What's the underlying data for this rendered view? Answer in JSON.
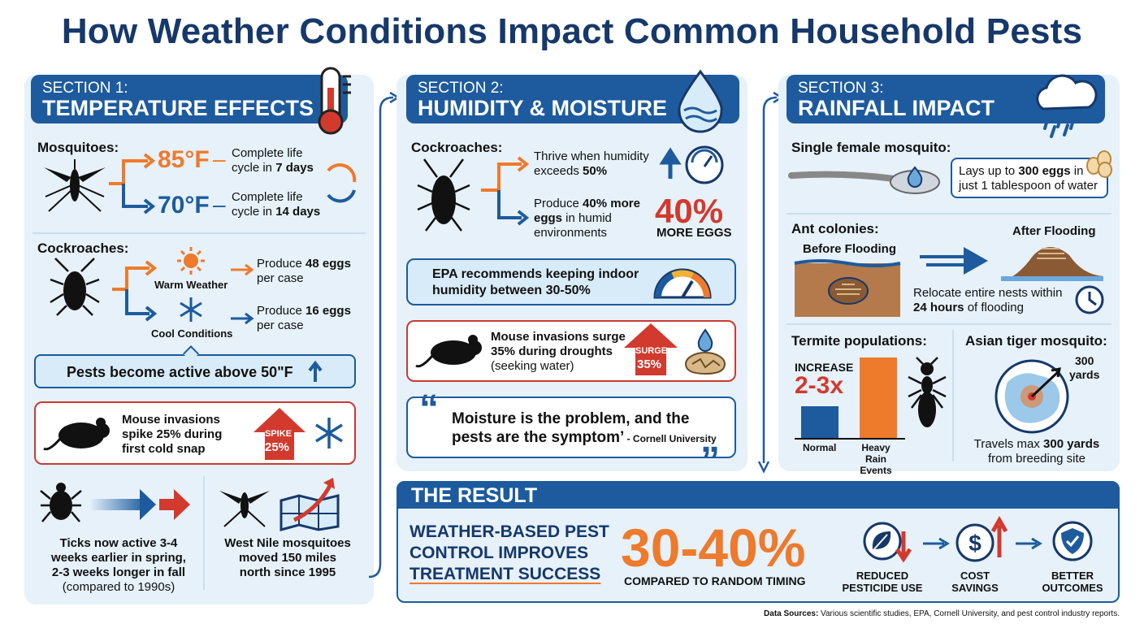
{
  "title": "How Weather Conditions Impact Common Household Pests",
  "colors": {
    "navy": "#16386b",
    "blue": "#1d5b9e",
    "orange": "#ee7a2b",
    "red": "#d23a2e",
    "panel": "#e6f1fa"
  },
  "s1": {
    "label": "SECTION 1:",
    "title": "TEMPERATURE EFFECTS",
    "mosq_h": "Mosquitoes:",
    "t85": "85°F",
    "c85a": "Complete life",
    "c85b": "cycle in ",
    "c85c": "7 days",
    "t70": "70°F",
    "c70a": "Complete life",
    "c70b": "cycle in ",
    "c70c": "14 days",
    "roach_h": "Cockroaches:",
    "warm": "Warm Weather",
    "cool": "Cool Conditions",
    "e48a": "Produce ",
    "e48b": "48 eggs",
    "e48c": "per case",
    "e16a": "Produce ",
    "e16b": "16 eggs",
    "e16c": "per case",
    "active": "Pests become active above 50\"F",
    "mouse1": "Mouse invasions",
    "mouse2": "spike 25% during",
    "mouse3": "first cold snap",
    "spike": "SPIKE",
    "spike_pct": "25%",
    "tick1": "Ticks now active 3-4",
    "tick2": "weeks earlier in spring,",
    "tick3": "2-3 weeks longer in fall",
    "tick4": "(compared to 1990s)",
    "wn1": "West Nile mosquitoes",
    "wn2": "moved 150 miles",
    "wn3": "north since 1995"
  },
  "s2": {
    "label": "SECTION 2:",
    "title": "HUMIDITY & MOISTURE",
    "roach_h": "Cockroaches:",
    "thrive1": "Thrive when humidity",
    "thrive2": "exceeds ",
    "thrive3": "50%",
    "prod1": "Produce ",
    "prod2": "40% more",
    "prod3": "eggs",
    "prod4": " in humid",
    "prod5": "environments",
    "pct": "40%",
    "more": "MORE EGGS",
    "epa1": "EPA recommends keeping indoor",
    "epa2": "humidity between 30-50%",
    "mouse1": "Mouse invasions surge",
    "mouse2": "35% during droughts",
    "mouse3": "(seeking water)",
    "surge": "SURGE",
    "surge_pct": "35%",
    "q1": "Moisture is the problem, and the",
    "q2": "pests are the symptom’",
    "q_src": " - Cornell University"
  },
  "s3": {
    "label": "SECTION 3:",
    "title": "RAINFALL IMPACT",
    "fem_h": "Single female mosquito:",
    "lays1": "Lays up to ",
    "lays2": "300 eggs",
    "lays3": " in",
    "lays4": "just 1 tablespoon of water",
    "ant_h": "Ant colonies:",
    "before": "Before Flooding",
    "after": "After Flooding",
    "rel1": "Relocate entire nests within",
    "rel2": "24 hours",
    "rel3": " of flooding",
    "term_h": "Termite populations:",
    "increase": "INCREASE",
    "mult": "2-3x",
    "normal": "Normal",
    "heavy1": "Heavy Rain",
    "heavy2": "Events",
    "tiger_h": "Asian tiger mosquito:",
    "yards1": "300",
    "yards2": "yards",
    "trav1": "Travels max ",
    "trav2": "300 yards",
    "trav3": "from breeding site"
  },
  "chart_data": {
    "type": "bar",
    "categories": [
      "Normal",
      "Heavy Rain Events"
    ],
    "values": [
      1,
      2.5
    ]
  },
  "result": {
    "title": "THE RESULT",
    "l1": "WEATHER-BASED PEST",
    "l2": "CONTROL IMPROVES",
    "l3": "TREATMENT SUCCESS",
    "pct": "30-40%",
    "cmp": "COMPARED TO RANDOM TIMING",
    "r1a": "REDUCED",
    "r1b": "PESTICIDE USE",
    "r2a": "COST",
    "r2b": "SAVINGS",
    "r3a": "BETTER",
    "r3b": "OUTCOMES"
  },
  "src_b": "Data Sources:",
  "src": " Various scientific studies, EPA, Cornell University, and pest control industry reports."
}
